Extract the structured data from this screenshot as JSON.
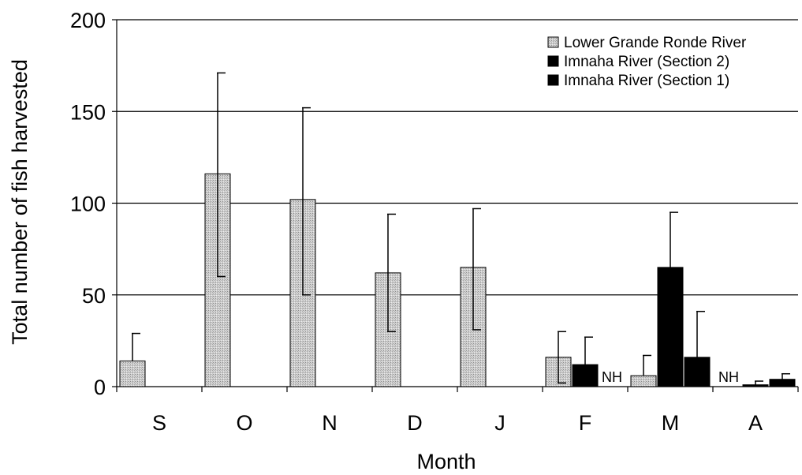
{
  "chart_data": {
    "type": "bar",
    "title": "",
    "xlabel": "Month",
    "ylabel": "Total number of fish harvested",
    "ylim": [
      0,
      200
    ],
    "yticks": [
      0,
      50,
      100,
      150,
      200
    ],
    "grid": true,
    "legend_position": "top-right",
    "categories": [
      "S",
      "O",
      "N",
      "D",
      "J",
      "F",
      "M",
      "A"
    ],
    "series": [
      {
        "name": "Lower Grande Ronde River",
        "color": "#c8c8c8",
        "pattern": "dotted-light",
        "values": [
          14,
          116,
          102,
          62,
          65,
          16,
          6,
          null
        ],
        "error_upper": [
          29,
          171,
          152,
          94,
          97,
          30,
          17,
          null
        ],
        "error_lower": [
          null,
          60,
          50,
          30,
          31,
          2,
          null,
          null
        ]
      },
      {
        "name": "Imnaha River (Section 2)",
        "color": "#000000",
        "pattern": "solid",
        "values": [
          null,
          null,
          null,
          null,
          null,
          12,
          65,
          1
        ],
        "error_upper": [
          null,
          null,
          null,
          null,
          null,
          27,
          95,
          3
        ],
        "error_lower": [
          null,
          null,
          null,
          null,
          null,
          null,
          null,
          null
        ]
      },
      {
        "name": "Imnaha River (Section 1)",
        "color": "#000000",
        "pattern": "solid",
        "values": [
          null,
          null,
          null,
          null,
          null,
          null,
          16,
          4
        ],
        "error_upper": [
          null,
          null,
          null,
          null,
          null,
          null,
          41,
          7
        ],
        "error_lower": [
          null,
          null,
          null,
          null,
          null,
          null,
          null,
          null
        ]
      }
    ],
    "annotations": [
      {
        "text": "NH",
        "category": "F",
        "series_index": 2
      },
      {
        "text": "NH",
        "category": "A",
        "series_index": 0
      }
    ]
  }
}
